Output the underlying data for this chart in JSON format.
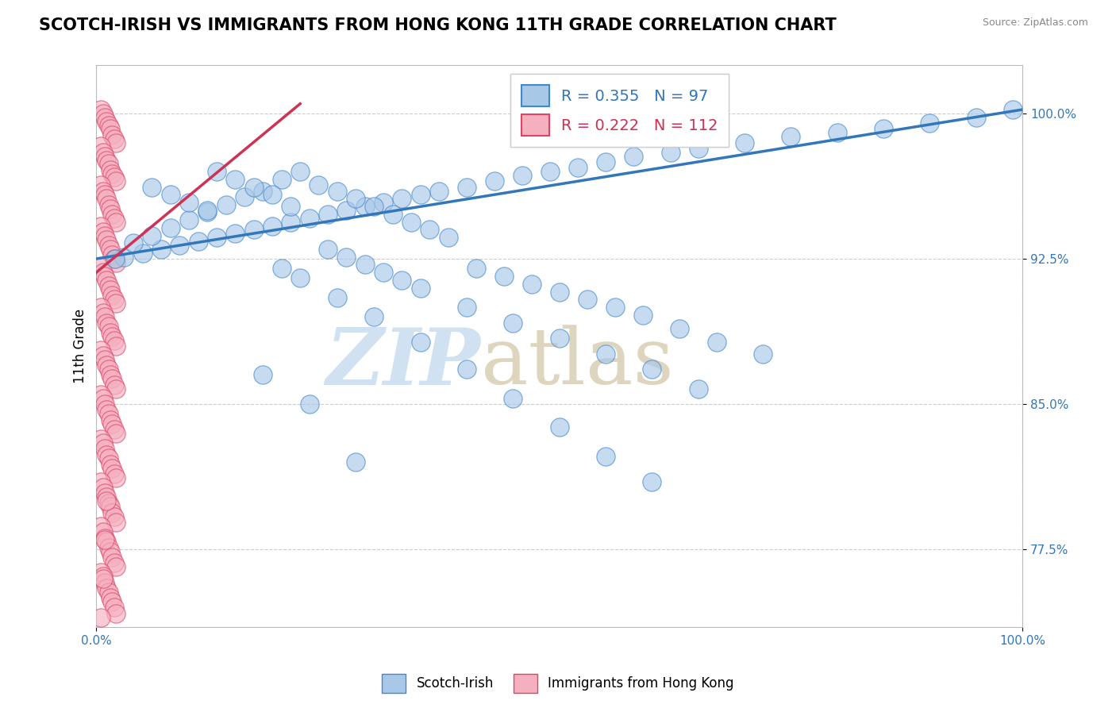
{
  "title": "SCOTCH-IRISH VS IMMIGRANTS FROM HONG KONG 11TH GRADE CORRELATION CHART",
  "source": "Source: ZipAtlas.com",
  "ylabel": "11th Grade",
  "xmin": 0.0,
  "xmax": 1.0,
  "ymin": 0.735,
  "ymax": 1.025,
  "yticks": [
    0.775,
    0.85,
    0.925,
    1.0
  ],
  "ytick_labels": [
    "77.5%",
    "85.0%",
    "92.5%",
    "100.0%"
  ],
  "xtick_labels": [
    "0.0%",
    "100.0%"
  ],
  "blue_R": 0.355,
  "blue_N": 97,
  "pink_R": 0.222,
  "pink_N": 112,
  "blue_color": "#a8c8e8",
  "pink_color": "#f5b0c0",
  "blue_edge_color": "#4488cc",
  "pink_edge_color": "#dd4466",
  "blue_line_color": "#3377bb",
  "pink_line_color": "#cc3355",
  "legend_label_blue": "Scotch-Irish",
  "legend_label_pink": "Immigrants from Hong Kong",
  "background_color": "#ffffff",
  "title_fontsize": 15,
  "axis_label_fontsize": 12,
  "tick_label_fontsize": 11,
  "legend_fontsize": 14,
  "blue_line": [
    [
      0.0,
      0.925
    ],
    [
      1.0,
      1.002
    ]
  ],
  "pink_line": [
    [
      0.0,
      0.918
    ],
    [
      0.22,
      1.005
    ]
  ],
  "blue_x": [
    0.99,
    0.95,
    0.9,
    0.85,
    0.8,
    0.75,
    0.7,
    0.65,
    0.62,
    0.58,
    0.55,
    0.52,
    0.49,
    0.46,
    0.43,
    0.4,
    0.37,
    0.35,
    0.33,
    0.31,
    0.29,
    0.27,
    0.25,
    0.23,
    0.21,
    0.19,
    0.17,
    0.15,
    0.13,
    0.11,
    0.09,
    0.07,
    0.05,
    0.03,
    0.02,
    0.18,
    0.16,
    0.14,
    0.12,
    0.1,
    0.08,
    0.06,
    0.04,
    0.22,
    0.2,
    0.24,
    0.26,
    0.28,
    0.3,
    0.32,
    0.34,
    0.36,
    0.38,
    0.41,
    0.44,
    0.47,
    0.5,
    0.53,
    0.56,
    0.59,
    0.63,
    0.67,
    0.72,
    0.13,
    0.15,
    0.17,
    0.19,
    0.21,
    0.06,
    0.08,
    0.1,
    0.12,
    0.25,
    0.27,
    0.29,
    0.31,
    0.33,
    0.35,
    0.4,
    0.45,
    0.5,
    0.55,
    0.6,
    0.65,
    0.2,
    0.22,
    0.26,
    0.3,
    0.35,
    0.4,
    0.45,
    0.5,
    0.55,
    0.6,
    0.18,
    0.23,
    0.28
  ],
  "blue_y": [
    1.002,
    0.998,
    0.995,
    0.992,
    0.99,
    0.988,
    0.985,
    0.982,
    0.98,
    0.978,
    0.975,
    0.972,
    0.97,
    0.968,
    0.965,
    0.962,
    0.96,
    0.958,
    0.956,
    0.954,
    0.952,
    0.95,
    0.948,
    0.946,
    0.944,
    0.942,
    0.94,
    0.938,
    0.936,
    0.934,
    0.932,
    0.93,
    0.928,
    0.926,
    0.925,
    0.96,
    0.957,
    0.953,
    0.949,
    0.945,
    0.941,
    0.937,
    0.933,
    0.97,
    0.966,
    0.963,
    0.96,
    0.956,
    0.952,
    0.948,
    0.944,
    0.94,
    0.936,
    0.92,
    0.916,
    0.912,
    0.908,
    0.904,
    0.9,
    0.896,
    0.889,
    0.882,
    0.876,
    0.97,
    0.966,
    0.962,
    0.958,
    0.952,
    0.962,
    0.958,
    0.954,
    0.95,
    0.93,
    0.926,
    0.922,
    0.918,
    0.914,
    0.91,
    0.9,
    0.892,
    0.884,
    0.876,
    0.868,
    0.858,
    0.92,
    0.915,
    0.905,
    0.895,
    0.882,
    0.868,
    0.853,
    0.838,
    0.823,
    0.81,
    0.865,
    0.85,
    0.82
  ],
  "pink_x": [
    0.005,
    0.007,
    0.009,
    0.011,
    0.013,
    0.015,
    0.017,
    0.019,
    0.021,
    0.005,
    0.007,
    0.009,
    0.011,
    0.013,
    0.015,
    0.017,
    0.019,
    0.021,
    0.005,
    0.007,
    0.009,
    0.011,
    0.013,
    0.015,
    0.017,
    0.019,
    0.021,
    0.005,
    0.007,
    0.009,
    0.011,
    0.013,
    0.015,
    0.017,
    0.019,
    0.021,
    0.005,
    0.007,
    0.009,
    0.011,
    0.013,
    0.015,
    0.017,
    0.019,
    0.021,
    0.005,
    0.007,
    0.009,
    0.011,
    0.013,
    0.015,
    0.017,
    0.019,
    0.021,
    0.005,
    0.007,
    0.009,
    0.011,
    0.013,
    0.015,
    0.017,
    0.019,
    0.021,
    0.005,
    0.007,
    0.009,
    0.011,
    0.013,
    0.015,
    0.017,
    0.019,
    0.021,
    0.005,
    0.007,
    0.009,
    0.011,
    0.013,
    0.015,
    0.017,
    0.019,
    0.021,
    0.005,
    0.007,
    0.009,
    0.011,
    0.013,
    0.015,
    0.017,
    0.019,
    0.021,
    0.005,
    0.007,
    0.009,
    0.011,
    0.013,
    0.015,
    0.017,
    0.019,
    0.021,
    0.005,
    0.007,
    0.009,
    0.011,
    0.013,
    0.015,
    0.017,
    0.019,
    0.021,
    0.005,
    0.007,
    0.009,
    0.011
  ],
  "pink_y": [
    1.002,
    1.0,
    0.998,
    0.996,
    0.994,
    0.992,
    0.989,
    0.987,
    0.985,
    0.983,
    0.98,
    0.978,
    0.976,
    0.974,
    0.971,
    0.969,
    0.967,
    0.965,
    0.963,
    0.96,
    0.958,
    0.956,
    0.953,
    0.951,
    0.948,
    0.946,
    0.944,
    0.942,
    0.939,
    0.937,
    0.935,
    0.932,
    0.93,
    0.927,
    0.925,
    0.923,
    0.921,
    0.918,
    0.916,
    0.914,
    0.911,
    0.909,
    0.906,
    0.904,
    0.902,
    0.9,
    0.897,
    0.895,
    0.892,
    0.89,
    0.887,
    0.885,
    0.883,
    0.88,
    0.878,
    0.875,
    0.873,
    0.87,
    0.868,
    0.865,
    0.863,
    0.86,
    0.858,
    0.855,
    0.853,
    0.85,
    0.847,
    0.845,
    0.842,
    0.84,
    0.837,
    0.835,
    0.832,
    0.83,
    0.827,
    0.824,
    0.822,
    0.819,
    0.817,
    0.814,
    0.812,
    0.81,
    0.807,
    0.804,
    0.802,
    0.799,
    0.797,
    0.794,
    0.792,
    0.789,
    0.787,
    0.784,
    0.781,
    0.779,
    0.776,
    0.774,
    0.771,
    0.768,
    0.766,
    0.763,
    0.761,
    0.758,
    0.755,
    0.753,
    0.75,
    0.748,
    0.745,
    0.742,
    0.74,
    0.76,
    0.78,
    0.8
  ]
}
